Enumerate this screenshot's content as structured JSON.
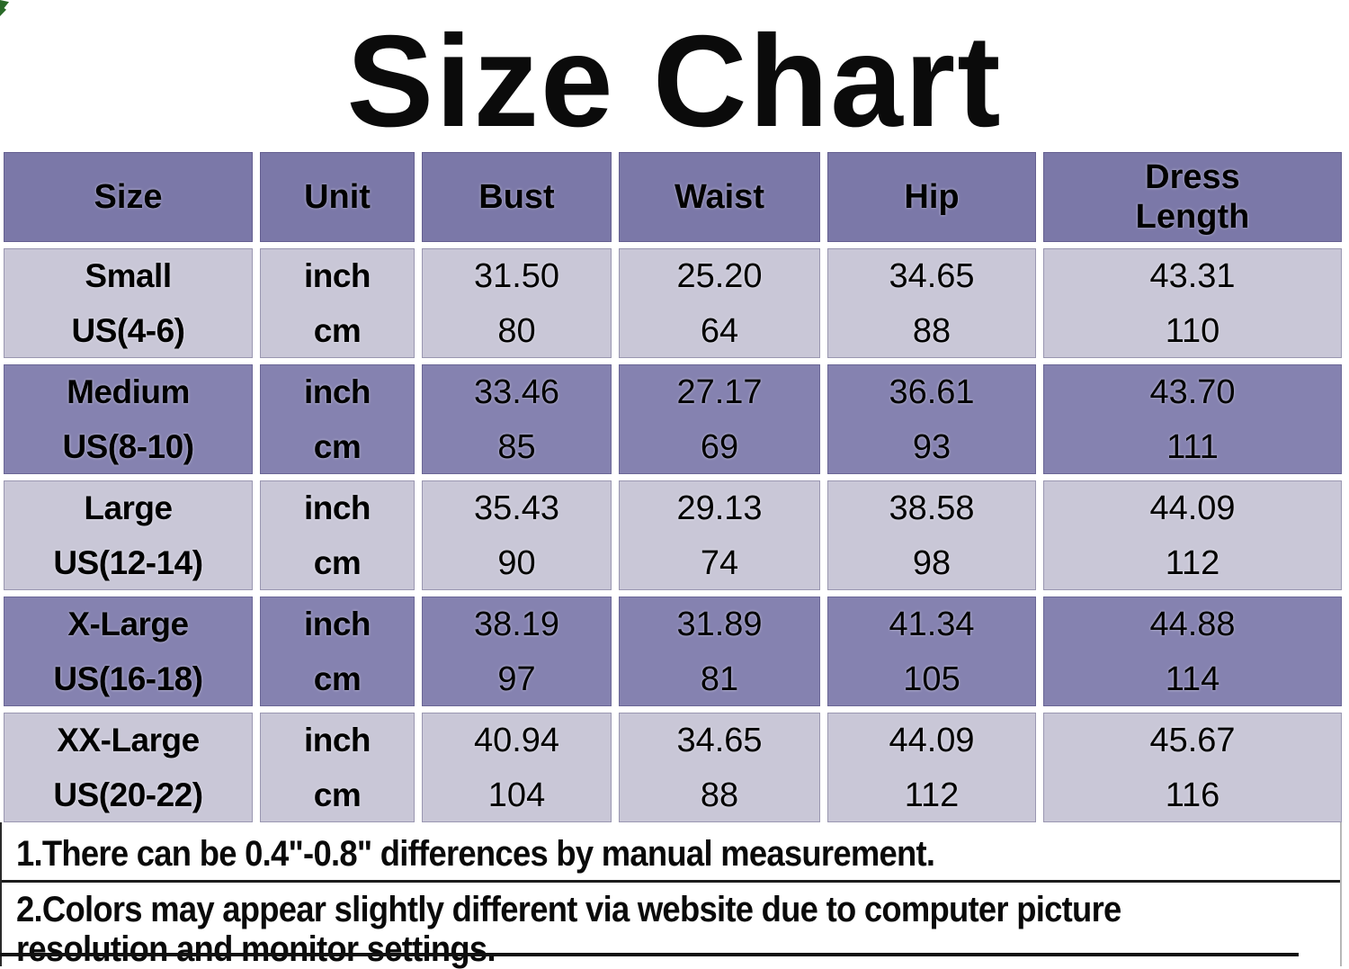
{
  "title": "Size Chart",
  "table": {
    "headers": [
      "Size",
      "Unit",
      "Bust",
      "Waist",
      "Hip",
      "Dress Length"
    ],
    "unit_labels": [
      "inch",
      "cm"
    ],
    "rows": [
      {
        "size_name": "Small",
        "size_us": "US(4-6)",
        "units": [
          "inch",
          "cm"
        ],
        "bust": [
          "31.50",
          "80"
        ],
        "waist": [
          "25.20",
          "64"
        ],
        "hip": [
          "34.65",
          "88"
        ],
        "dress_length": [
          "43.31",
          "110"
        ]
      },
      {
        "size_name": "Medium",
        "size_us": "US(8-10)",
        "units": [
          "inch",
          "cm"
        ],
        "bust": [
          "33.46",
          "85"
        ],
        "waist": [
          "27.17",
          "69"
        ],
        "hip": [
          "36.61",
          "93"
        ],
        "dress_length": [
          "43.70",
          "111"
        ]
      },
      {
        "size_name": "Large",
        "size_us": "US(12-14)",
        "units": [
          "inch",
          "cm"
        ],
        "bust": [
          "35.43",
          "90"
        ],
        "waist": [
          "29.13",
          "74"
        ],
        "hip": [
          "38.58",
          "98"
        ],
        "dress_length": [
          "44.09",
          "112"
        ]
      },
      {
        "size_name": "X-Large",
        "size_us": "US(16-18)",
        "units": [
          "inch",
          "cm"
        ],
        "bust": [
          "38.19",
          "97"
        ],
        "waist": [
          "31.89",
          "81"
        ],
        "hip": [
          "41.34",
          "105"
        ],
        "dress_length": [
          "44.88",
          "114"
        ]
      },
      {
        "size_name": "XX-Large",
        "size_us": "US(20-22)",
        "units": [
          "inch",
          "cm"
        ],
        "bust": [
          "40.94",
          "104"
        ],
        "waist": [
          "34.65",
          "88"
        ],
        "hip": [
          "44.09",
          "112"
        ],
        "dress_length": [
          "45.67",
          "116"
        ]
      }
    ]
  },
  "notes": {
    "note1": "1.There can be 0.4\"-0.8\" differences by manual measurement.",
    "note2_line1": "2.Colors may appear slightly different via website due to computer picture",
    "note2_line2": "resolution and monitor settings."
  },
  "colors": {
    "header_bg": "#7b78a8",
    "row_dark_bg": "#8582b0",
    "row_light_bg": "#c9c7d7",
    "text": "#000000",
    "corner_mark_green": "#2a6a28",
    "background": "#ffffff"
  }
}
